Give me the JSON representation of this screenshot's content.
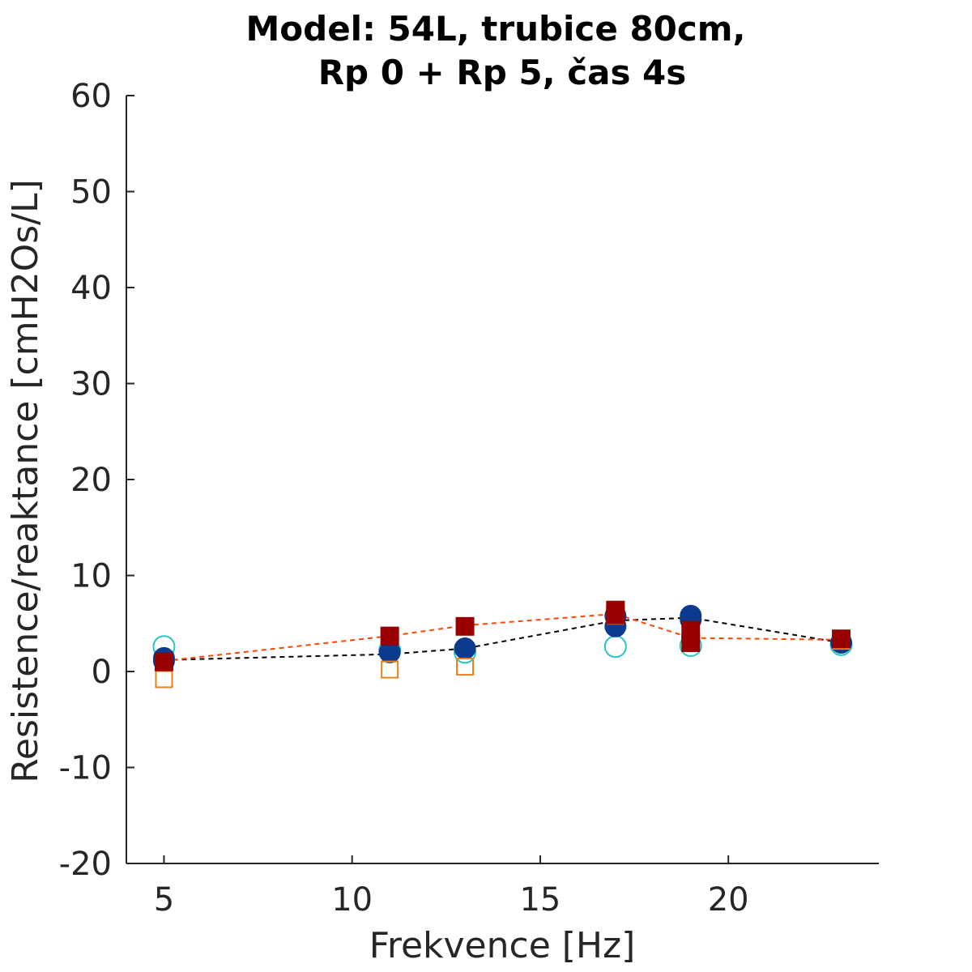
{
  "chart_data": {
    "type": "scatter",
    "title": [
      "Model: 54L, trubice 80cm,",
      "Rp 0 + Rp 5, čas 4s"
    ],
    "xlabel": "Frekvence [Hz]",
    "ylabel": "Resistence/reaktance [cmH2Os/L]",
    "xlim": [
      4,
      24
    ],
    "ylim": [
      -20,
      60
    ],
    "xticks": [
      5,
      10,
      15,
      20
    ],
    "yticks": [
      -20,
      -10,
      0,
      10,
      20,
      30,
      40,
      50,
      60
    ],
    "grid": false,
    "legend": "none",
    "series": [
      {
        "marker": "circle-open",
        "color": "#2ec4c4",
        "x": [
          5,
          11,
          13,
          17,
          19,
          23
        ],
        "y": [
          2.6,
          2.2,
          2.0,
          2.6,
          2.7,
          2.8
        ]
      },
      {
        "marker": "circle-filled",
        "color": "#0b3a8f",
        "x": [
          5,
          5,
          11,
          13,
          17,
          17,
          19,
          19,
          23
        ],
        "y": [
          1.4,
          1.1,
          2.0,
          2.4,
          5.8,
          4.7,
          5.8,
          5.4,
          3.0
        ],
        "trend": {
          "color": "#000000",
          "x": [
            5,
            11,
            13,
            17,
            19,
            23
          ],
          "y": [
            1.2,
            1.8,
            2.4,
            5.3,
            5.6,
            3.0
          ]
        }
      },
      {
        "marker": "square-open",
        "color": "#e8821e",
        "x": [
          5,
          11,
          13,
          17,
          19,
          23
        ],
        "y": [
          -0.8,
          0.2,
          0.5,
          5.8,
          3.0,
          3.2
        ]
      },
      {
        "marker": "square-filled",
        "color": "#990000",
        "x": [
          5,
          11,
          13,
          17,
          17,
          19,
          19,
          23
        ],
        "y": [
          1.0,
          3.7,
          4.7,
          6.4,
          5.9,
          4.3,
          3.0,
          3.4
        ],
        "trend": {
          "color": "#ff4500",
          "x": [
            5,
            11,
            13,
            17,
            19,
            23
          ],
          "y": [
            1.1,
            3.7,
            4.8,
            6.0,
            3.5,
            3.3
          ]
        }
      }
    ]
  }
}
